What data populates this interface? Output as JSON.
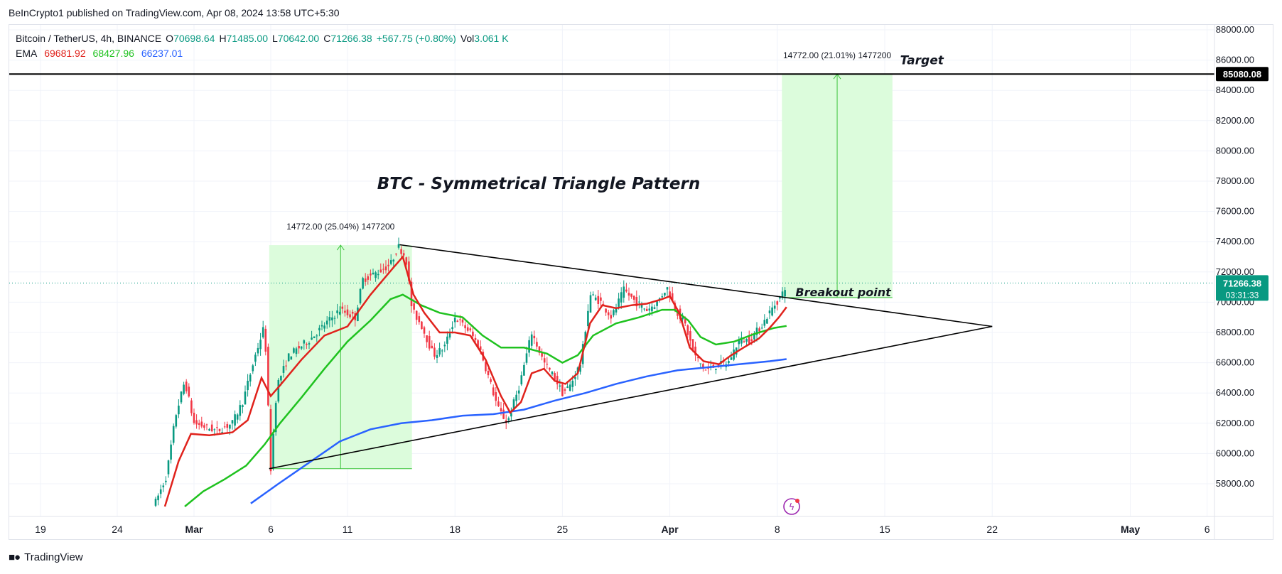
{
  "publisher_line": "BeInCrypto1 published on TradingView.com, Apr 08, 2024 13:58 UTC+5:30",
  "legend": {
    "symbol": "Bitcoin / TetherUS, 4h, BINANCE",
    "open_label": "O",
    "open": "70698.64",
    "high_label": "H",
    "high": "71485.00",
    "low_label": "L",
    "low": "70642.00",
    "close_label": "C",
    "close": "71266.38",
    "change": "+567.75 (+0.80%)",
    "vol_label": "Vol",
    "vol": "3.061 K",
    "ema_label": "EMA",
    "ema_values": [
      "69681.92",
      "68427.96",
      "66237.01"
    ]
  },
  "footer": {
    "brand": "TradingView"
  },
  "colors": {
    "up": "#089981",
    "down": "#f23645",
    "ema_fast": "#e0221c",
    "ema_mid": "#1fc21f",
    "ema_slow": "#2962ff",
    "range_fill": "#dcfcdc",
    "range_line": "#3cc43c"
  },
  "chart_data": {
    "type": "candlestick",
    "title": "BTC - Symmetrical Triangle Pattern",
    "ylim": [
      56500,
      88800
    ],
    "y_ticks": [
      58000,
      60000,
      62000,
      64000,
      66000,
      68000,
      70000,
      72000,
      74000,
      76000,
      78000,
      80000,
      82000,
      84000,
      86000,
      88000
    ],
    "y_tick_labels": [
      "58000.00",
      "60000.00",
      "62000.00",
      "64000.00",
      "66000.00",
      "68000.00",
      "70000.00",
      "72000.00",
      "74000.00",
      "76000.00",
      "78000.00",
      "80000.00",
      "82000.00",
      "84000.00",
      "86000.00",
      "88000.00"
    ],
    "x_ticks": [
      {
        "label": "19",
        "day": -10
      },
      {
        "label": "24",
        "day": -5
      },
      {
        "label": "Mar",
        "day": 0
      },
      {
        "label": "6",
        "day": 5
      },
      {
        "label": "11",
        "day": 10
      },
      {
        "label": "18",
        "day": 17
      },
      {
        "label": "25",
        "day": 24
      },
      {
        "label": "Apr",
        "day": 31
      },
      {
        "label": "8",
        "day": 38
      },
      {
        "label": "15",
        "day": 45
      },
      {
        "label": "22",
        "day": 52
      },
      {
        "label": "May",
        "day": 61
      },
      {
        "label": "6",
        "day": 66
      }
    ],
    "price_path": [
      [
        -2.5,
        56800
      ],
      [
        -1.8,
        58500
      ],
      [
        -1.2,
        62500
      ],
      [
        -0.6,
        64800
      ],
      [
        0,
        62000
      ],
      [
        1.5,
        61500
      ],
      [
        2.5,
        62000
      ],
      [
        3.2,
        63500
      ],
      [
        4.0,
        66500
      ],
      [
        4.6,
        68500
      ],
      [
        5.0,
        59000
      ],
      [
        5.4,
        64500
      ],
      [
        6.2,
        66500
      ],
      [
        7.5,
        67500
      ],
      [
        8.5,
        68500
      ],
      [
        9.5,
        69500
      ],
      [
        10.5,
        69000
      ],
      [
        11.0,
        71500
      ],
      [
        12.0,
        72000
      ],
      [
        12.8,
        72500
      ],
      [
        13.3,
        73700
      ],
      [
        13.8,
        73000
      ],
      [
        14.2,
        69500
      ],
      [
        14.8,
        68500
      ],
      [
        15.6,
        66500
      ],
      [
        16.3,
        67000
      ],
      [
        17.0,
        69000
      ],
      [
        18.0,
        68000
      ],
      [
        18.6,
        67000
      ],
      [
        19.2,
        65000
      ],
      [
        19.8,
        63000
      ],
      [
        20.4,
        62000
      ],
      [
        21.2,
        64500
      ],
      [
        22.0,
        68000
      ],
      [
        22.8,
        66000
      ],
      [
        23.5,
        65000
      ],
      [
        24.0,
        64000
      ],
      [
        24.5,
        64500
      ],
      [
        25.2,
        66000
      ],
      [
        25.8,
        70500
      ],
      [
        26.5,
        70000
      ],
      [
        27.2,
        69000
      ],
      [
        28.0,
        70800
      ],
      [
        28.8,
        70000
      ],
      [
        29.5,
        69500
      ],
      [
        30.2,
        70000
      ],
      [
        30.8,
        71000
      ],
      [
        31.4,
        69500
      ],
      [
        32.0,
        68500
      ],
      [
        32.6,
        66500
      ],
      [
        33.3,
        65500
      ],
      [
        34.0,
        65800
      ],
      [
        34.8,
        66000
      ],
      [
        35.5,
        67500
      ],
      [
        36.2,
        67500
      ],
      [
        37.0,
        68500
      ],
      [
        37.6,
        69500
      ],
      [
        38.3,
        70500
      ],
      [
        38.6,
        71266
      ]
    ],
    "ema_fast": [
      [
        -1.9,
        56500
      ],
      [
        -1.0,
        59500
      ],
      [
        -0.2,
        61300
      ],
      [
        1.0,
        61200
      ],
      [
        2.5,
        61400
      ],
      [
        3.5,
        62200
      ],
      [
        4.4,
        65000
      ],
      [
        5.0,
        63800
      ],
      [
        5.6,
        64500
      ],
      [
        7.0,
        66200
      ],
      [
        8.5,
        67800
      ],
      [
        10.0,
        68400
      ],
      [
        11.5,
        70500
      ],
      [
        13.0,
        72300
      ],
      [
        13.6,
        73000
      ],
      [
        14.3,
        70500
      ],
      [
        15.0,
        69300
      ],
      [
        16.0,
        68000
      ],
      [
        17.0,
        68000
      ],
      [
        18.0,
        67800
      ],
      [
        19.0,
        66200
      ],
      [
        20.0,
        63800
      ],
      [
        20.6,
        62700
      ],
      [
        21.3,
        63400
      ],
      [
        22.0,
        65300
      ],
      [
        22.8,
        65600
      ],
      [
        23.5,
        64800
      ],
      [
        24.2,
        64600
      ],
      [
        25.0,
        65300
      ],
      [
        25.8,
        68600
      ],
      [
        26.6,
        69800
      ],
      [
        27.5,
        69600
      ],
      [
        28.5,
        69800
      ],
      [
        29.5,
        69900
      ],
      [
        30.5,
        70200
      ],
      [
        31.0,
        70400
      ],
      [
        31.6,
        69300
      ],
      [
        32.3,
        67000
      ],
      [
        33.2,
        66100
      ],
      [
        34.2,
        65900
      ],
      [
        35.0,
        66500
      ],
      [
        35.8,
        67000
      ],
      [
        36.8,
        67600
      ],
      [
        37.5,
        68300
      ],
      [
        38.1,
        69000
      ],
      [
        38.6,
        69680
      ]
    ],
    "ema_mid": [
      [
        -0.6,
        56500
      ],
      [
        0.6,
        57500
      ],
      [
        2.0,
        58300
      ],
      [
        3.4,
        59200
      ],
      [
        4.6,
        60600
      ],
      [
        5.6,
        62000
      ],
      [
        7.0,
        63700
      ],
      [
        8.5,
        65600
      ],
      [
        10.0,
        67400
      ],
      [
        11.5,
        68800
      ],
      [
        12.8,
        70200
      ],
      [
        13.6,
        70500
      ],
      [
        14.8,
        69800
      ],
      [
        16.0,
        69300
      ],
      [
        17.5,
        69000
      ],
      [
        18.8,
        67800
      ],
      [
        20.0,
        67000
      ],
      [
        21.5,
        67000
      ],
      [
        23.0,
        66600
      ],
      [
        24.0,
        66000
      ],
      [
        25.0,
        66500
      ],
      [
        26.0,
        67800
      ],
      [
        27.5,
        68600
      ],
      [
        29.0,
        69000
      ],
      [
        30.5,
        69500
      ],
      [
        31.3,
        69500
      ],
      [
        32.2,
        68800
      ],
      [
        33.0,
        67700
      ],
      [
        34.0,
        67200
      ],
      [
        35.2,
        67400
      ],
      [
        36.5,
        67900
      ],
      [
        37.8,
        68300
      ],
      [
        38.6,
        68430
      ]
    ],
    "ema_slow": [
      [
        3.7,
        56700
      ],
      [
        5.5,
        58000
      ],
      [
        7.5,
        59400
      ],
      [
        9.5,
        60800
      ],
      [
        11.5,
        61600
      ],
      [
        13.5,
        62000
      ],
      [
        15.5,
        62200
      ],
      [
        17.5,
        62500
      ],
      [
        19.5,
        62600
      ],
      [
        21.5,
        62900
      ],
      [
        23.5,
        63500
      ],
      [
        25.5,
        64000
      ],
      [
        27.5,
        64600
      ],
      [
        29.5,
        65100
      ],
      [
        31.5,
        65500
      ],
      [
        33.5,
        65700
      ],
      [
        35.5,
        65900
      ],
      [
        37.5,
        66100
      ],
      [
        38.6,
        66240
      ]
    ],
    "triangle": {
      "upper": [
        [
          13.4,
          73800
        ],
        [
          38.6,
          70300
        ],
        [
          52.0,
          68400
        ]
      ],
      "lower": [
        [
          4.9,
          59000
        ],
        [
          52.0,
          68400
        ]
      ]
    },
    "measure_ranges": [
      {
        "x0": 4.9,
        "x1": 14.2,
        "y0": 59000,
        "y1": 73772,
        "label": "14772.00 (25.04%) 1477200"
      },
      {
        "x0": 38.3,
        "x1": 45.5,
        "y0": 70308,
        "y1": 85080,
        "label": "14772.00 (21.01%) 1477200"
      }
    ],
    "horizontal_levels": [
      {
        "value": 85080.08,
        "label": "85080.08",
        "name": "Target"
      },
      {
        "value": 71266.38,
        "label": "71266.38",
        "countdown": "03:31:33"
      }
    ],
    "annotations": [
      {
        "text": "Target",
        "x": 46.0,
        "y": 86000
      },
      {
        "text": "Breakout point",
        "x": 39.0,
        "y": 70300
      }
    ],
    "hidden_axis_label": "70000.00"
  }
}
